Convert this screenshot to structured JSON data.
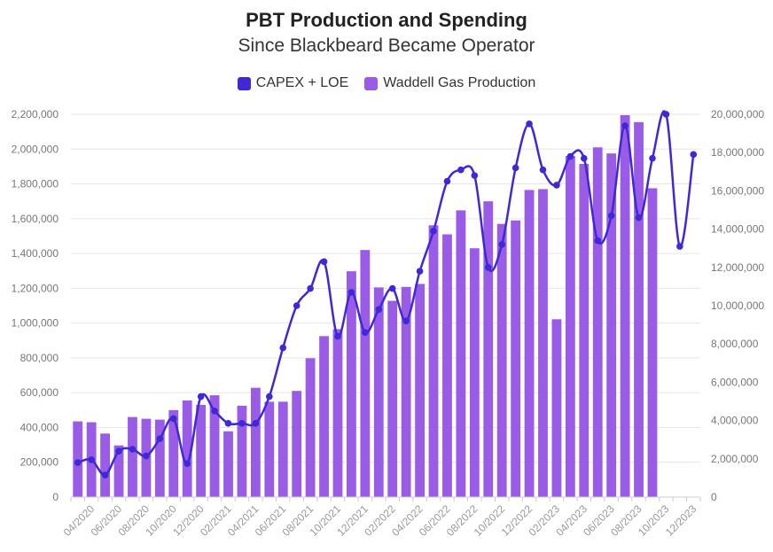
{
  "header": {
    "title": "PBT Production and Spending",
    "subtitle": "Since Blackbeard Became Operator"
  },
  "legend": [
    {
      "label": "CAPEX + LOE",
      "color": "#3f28d8"
    },
    {
      "label": "Waddell Gas Production",
      "color": "#9a5be6"
    }
  ],
  "chart_data": {
    "type": "bar+line",
    "categories": [
      "03/2020",
      "04/2020",
      "05/2020",
      "06/2020",
      "07/2020",
      "08/2020",
      "09/2020",
      "10/2020",
      "11/2020",
      "12/2020",
      "01/2021",
      "02/2021",
      "03/2021",
      "04/2021",
      "05/2021",
      "06/2021",
      "07/2021",
      "08/2021",
      "09/2021",
      "10/2021",
      "11/2021",
      "12/2021",
      "01/2022",
      "02/2022",
      "03/2022",
      "04/2022",
      "05/2022",
      "06/2022",
      "07/2022",
      "08/2022",
      "09/2022",
      "10/2022",
      "11/2022",
      "12/2022",
      "01/2023",
      "02/2023",
      "03/2023",
      "04/2023",
      "05/2023",
      "06/2023",
      "07/2023",
      "08/2023",
      "09/2023",
      "10/2023",
      "11/2023",
      "12/2023"
    ],
    "x_tick_labels": [
      "04/2020",
      "06/2020",
      "08/2020",
      "10/2020",
      "12/2020",
      "02/2021",
      "04/2021",
      "06/2021",
      "08/2021",
      "10/2021",
      "12/2021",
      "02/2022",
      "04/2022",
      "06/2022",
      "08/2022",
      "10/2022",
      "12/2022",
      "02/2023",
      "04/2023",
      "06/2023",
      "08/2023",
      "10/2023",
      "12/2023"
    ],
    "series": [
      {
        "name": "Waddell Gas Production",
        "type": "bar",
        "axis": "left",
        "color": "#9a5be6",
        "values": [
          435000,
          430000,
          365000,
          297000,
          460000,
          450000,
          445000,
          500000,
          555000,
          530000,
          585000,
          378000,
          525000,
          628000,
          548000,
          548000,
          610000,
          798000,
          925000,
          965000,
          1298000,
          1420000,
          1205000,
          1128000,
          1208000,
          1225000,
          1562000,
          1510000,
          1648000,
          1430000,
          1700000,
          1570000,
          1590000,
          1765000,
          1770000,
          1022000,
          1960000,
          1915000,
          2010000,
          1975000,
          2195000,
          2155000,
          1775000,
          null,
          null,
          null
        ]
      },
      {
        "name": "CAPEX + LOE",
        "type": "line",
        "axis": "right",
        "color": "#3f28d8",
        "values": [
          1800000,
          1950000,
          1150000,
          2400000,
          2500000,
          2150000,
          3050000,
          4100000,
          1750000,
          5250000,
          4500000,
          3850000,
          3850000,
          3850000,
          5250000,
          7800000,
          10000000,
          10900000,
          12300000,
          8400000,
          10700000,
          8600000,
          9800000,
          10900000,
          9200000,
          11800000,
          13900000,
          16500000,
          17100000,
          16800000,
          12000000,
          13200000,
          17200000,
          19500000,
          17100000,
          16300000,
          17800000,
          17700000,
          13400000,
          14700000,
          19400000,
          14600000,
          17700000,
          20000000,
          13100000,
          17900000
        ]
      }
    ],
    "left_axis": {
      "min": 0,
      "max": 2200000,
      "step": 200000,
      "tick_labels": [
        "0",
        "200,000",
        "400,000",
        "600,000",
        "800,000",
        "1,000,000",
        "1,200,000",
        "1,400,000",
        "1,600,000",
        "1,800,000",
        "2,000,000",
        "2,200,000"
      ]
    },
    "right_axis": {
      "min": 0,
      "max": 20000000,
      "step": 2000000,
      "tick_labels": [
        "0",
        "2,000,000",
        "4,000,000",
        "6,000,000",
        "8,000,000",
        "10,000,000",
        "12,000,000",
        "14,000,000",
        "16,000,000",
        "18,000,000",
        "20,000,000"
      ]
    },
    "grid": true,
    "legend_position": "top-center"
  }
}
